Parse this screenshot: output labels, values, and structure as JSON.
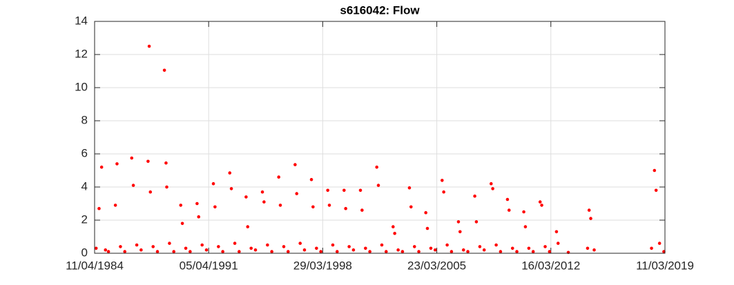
{
  "chart_data": {
    "type": "scatter",
    "title": "s616042: Flow",
    "color": "#ff0000",
    "grid": true,
    "xlim": [
      "11/04/1984",
      "11/03/2019"
    ],
    "xticks": [
      "11/04/1984",
      "05/04/1991",
      "29/03/1998",
      "23/03/2005",
      "16/03/2012",
      "11/03/2019"
    ],
    "ylim": [
      0,
      14
    ],
    "yticks": [
      0,
      2,
      4,
      6,
      8,
      10,
      12,
      14
    ],
    "x": [
      "15/05/1984",
      "20/07/1984",
      "15/09/1984",
      "10/12/1984",
      "15/02/1985",
      "20/07/1985",
      "25/08/1985",
      "10/11/1985",
      "15/02/1986",
      "20/07/1986",
      "25/08/1986",
      "10/11/1986",
      "15/02/1987",
      "20/07/1987",
      "15/08/1987",
      "10/09/1987",
      "10/11/1987",
      "15/02/1988",
      "20/07/1988",
      "25/08/1988",
      "10/09/1988",
      "10/11/1988",
      "15/02/1989",
      "20/07/1989",
      "25/08/1989",
      "10/11/1989",
      "15/02/1990",
      "20/07/1990",
      "25/08/1990",
      "10/11/1990",
      "15/02/1991",
      "20/07/1991",
      "25/08/1991",
      "10/11/1991",
      "15/02/1992",
      "20/07/1992",
      "25/08/1992",
      "10/11/1992",
      "15/02/1993",
      "20/07/1993",
      "25/08/1993",
      "10/11/1993",
      "15/02/1994",
      "20/07/1994",
      "25/08/1994",
      "10/11/1994",
      "15/02/1995",
      "20/07/1995",
      "25/08/1995",
      "10/11/1995",
      "15/02/1996",
      "20/07/1996",
      "25/08/1996",
      "10/11/1996",
      "15/02/1997",
      "20/07/1997",
      "25/08/1997",
      "10/11/1997",
      "15/02/1998",
      "20/07/1998",
      "25/08/1998",
      "10/11/1998",
      "15/02/1999",
      "20/07/1999",
      "25/08/1999",
      "10/11/1999",
      "15/02/2000",
      "20/07/2000",
      "25/08/2000",
      "10/11/2000",
      "15/02/2001",
      "20/07/2001",
      "25/08/2001",
      "10/11/2001",
      "15/02/2002",
      "20/07/2002",
      "25/08/2002",
      "10/11/2002",
      "15/02/2003",
      "20/07/2003",
      "25/08/2003",
      "10/11/2003",
      "15/02/2004",
      "20/07/2004",
      "25/08/2004",
      "10/11/2004",
      "15/02/2005",
      "20/07/2005",
      "25/08/2005",
      "10/11/2005",
      "15/02/2006",
      "20/07/2006",
      "25/08/2006",
      "10/11/2006",
      "15/02/2007",
      "20/07/2007",
      "25/08/2007",
      "10/11/2007",
      "15/02/2008",
      "20/07/2008",
      "25/08/2008",
      "10/11/2008",
      "15/02/2009",
      "20/07/2009",
      "25/08/2009",
      "10/11/2009",
      "15/02/2010",
      "20/07/2010",
      "25/08/2010",
      "10/11/2010",
      "15/02/2011",
      "20/07/2011",
      "25/08/2011",
      "10/11/2011",
      "15/02/2012",
      "20/07/2012",
      "25/08/2012",
      "10/04/2013",
      "15/06/2014",
      "20/07/2014",
      "25/08/2014",
      "10/11/2014",
      "15/05/2018",
      "20/07/2018",
      "25/08/2018",
      "10/11/2018",
      "15/02/2019"
    ],
    "values": [
      0.3,
      2.7,
      5.2,
      0.2,
      0.1,
      2.9,
      5.4,
      0.4,
      0.1,
      5.75,
      4.1,
      0.5,
      0.2,
      5.55,
      12.5,
      3.7,
      0.4,
      0.1,
      11.05,
      5.45,
      4.0,
      0.6,
      0.1,
      2.9,
      1.8,
      0.3,
      0.1,
      3.0,
      2.2,
      0.5,
      0.2,
      4.2,
      2.8,
      0.4,
      0.1,
      4.85,
      3.9,
      0.6,
      0.1,
      3.4,
      1.6,
      0.3,
      0.2,
      3.7,
      3.1,
      0.5,
      0.1,
      4.6,
      2.9,
      0.4,
      0.1,
      5.35,
      3.6,
      0.6,
      0.2,
      4.45,
      2.8,
      0.3,
      0.1,
      3.8,
      2.9,
      0.5,
      0.1,
      3.8,
      2.7,
      0.4,
      0.2,
      3.8,
      2.6,
      0.3,
      0.1,
      5.2,
      4.1,
      0.5,
      0.1,
      1.6,
      1.2,
      0.2,
      0.1,
      3.95,
      2.8,
      0.4,
      0.1,
      2.45,
      1.5,
      0.3,
      0.2,
      4.4,
      3.7,
      0.5,
      0.1,
      1.9,
      1.3,
      0.2,
      0.1,
      3.45,
      1.9,
      0.4,
      0.2,
      4.2,
      3.9,
      0.5,
      0.1,
      3.25,
      2.6,
      0.3,
      0.1,
      2.5,
      1.6,
      0.3,
      0.1,
      3.1,
      2.9,
      0.4,
      0.1,
      1.3,
      0.6,
      0.05,
      0.3,
      2.6,
      2.1,
      0.2,
      0.3,
      5.0,
      3.8,
      0.6,
      0.1
    ]
  }
}
